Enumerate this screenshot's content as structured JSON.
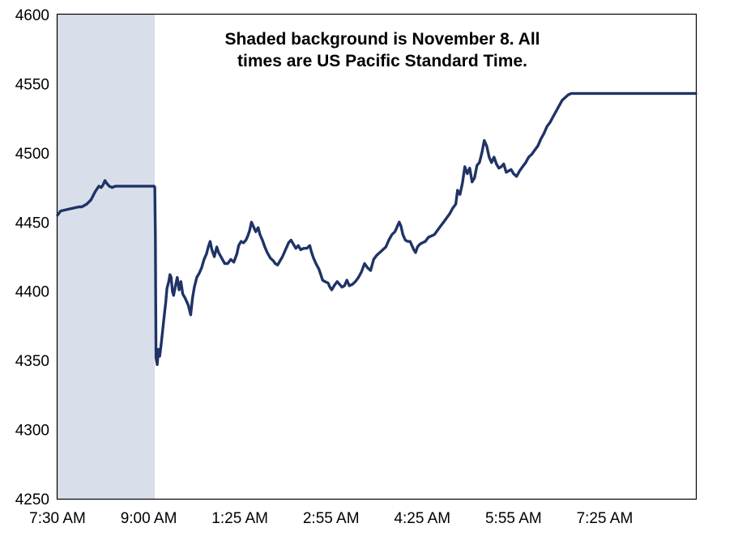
{
  "chart_data": {
    "type": "line",
    "title": "",
    "xlabel": "",
    "ylabel": "",
    "ylim": [
      4250,
      4600
    ],
    "y_ticks": [
      4250,
      4300,
      4350,
      4400,
      4450,
      4500,
      4550,
      4600
    ],
    "x_range": [
      0,
      1050
    ],
    "x_ticks": [
      {
        "label": "7:30 AM",
        "x": 0
      },
      {
        "label": "9:00 AM",
        "x": 150
      },
      {
        "label": "1:25 AM",
        "x": 300
      },
      {
        "label": "2:55 AM",
        "x": 450
      },
      {
        "label": "4:25 AM",
        "x": 600
      },
      {
        "label": "5:55 AM",
        "x": 750
      },
      {
        "label": "7:25 AM",
        "x": 900
      }
    ],
    "shaded_region": {
      "x_start": 0,
      "x_end": 160,
      "color": "#d9deeb"
    },
    "annotation": [
      "Shaded background is November 8. All",
      "times are US Pacific Standard Time."
    ],
    "grid": false,
    "series": [
      {
        "color": "#1f3366",
        "points": [
          [
            0,
            4455
          ],
          [
            5,
            4458
          ],
          [
            15,
            4459
          ],
          [
            25,
            4460
          ],
          [
            35,
            4461
          ],
          [
            40,
            4461
          ],
          [
            48,
            4463
          ],
          [
            55,
            4466
          ],
          [
            62,
            4472
          ],
          [
            68,
            4476
          ],
          [
            72,
            4475
          ],
          [
            75,
            4477
          ],
          [
            78,
            4480
          ],
          [
            81,
            4478
          ],
          [
            85,
            4476
          ],
          [
            90,
            4475
          ],
          [
            95,
            4476
          ],
          [
            100,
            4476
          ],
          [
            110,
            4476
          ],
          [
            130,
            4476
          ],
          [
            159,
            4476
          ],
          [
            160,
            4475
          ],
          [
            161,
            4440
          ],
          [
            162,
            4352
          ],
          [
            164,
            4347
          ],
          [
            166,
            4358
          ],
          [
            168,
            4353
          ],
          [
            170,
            4360
          ],
          [
            172,
            4368
          ],
          [
            175,
            4380
          ],
          [
            178,
            4392
          ],
          [
            180,
            4402
          ],
          [
            183,
            4407
          ],
          [
            185,
            4412
          ],
          [
            187,
            4410
          ],
          [
            189,
            4400
          ],
          [
            191,
            4397
          ],
          [
            194,
            4404
          ],
          [
            197,
            4410
          ],
          [
            200,
            4401
          ],
          [
            203,
            4407
          ],
          [
            206,
            4398
          ],
          [
            210,
            4395
          ],
          [
            215,
            4390
          ],
          [
            219,
            4383
          ],
          [
            222,
            4395
          ],
          [
            225,
            4403
          ],
          [
            229,
            4410
          ],
          [
            233,
            4413
          ],
          [
            237,
            4417
          ],
          [
            241,
            4423
          ],
          [
            245,
            4427
          ],
          [
            248,
            4432
          ],
          [
            251,
            4436
          ],
          [
            254,
            4430
          ],
          [
            258,
            4425
          ],
          [
            262,
            4432
          ],
          [
            265,
            4428
          ],
          [
            270,
            4424
          ],
          [
            275,
            4420
          ],
          [
            280,
            4420
          ],
          [
            285,
            4423
          ],
          [
            290,
            4421
          ],
          [
            295,
            4427
          ],
          [
            298,
            4433
          ],
          [
            302,
            4436
          ],
          [
            306,
            4435
          ],
          [
            310,
            4437
          ],
          [
            313,
            4440
          ],
          [
            316,
            4444
          ],
          [
            319,
            4450
          ],
          [
            322,
            4447
          ],
          [
            326,
            4443
          ],
          [
            330,
            4446
          ],
          [
            333,
            4441
          ],
          [
            337,
            4437
          ],
          [
            341,
            4432
          ],
          [
            345,
            4428
          ],
          [
            350,
            4424
          ],
          [
            355,
            4422
          ],
          [
            358,
            4420
          ],
          [
            362,
            4419
          ],
          [
            366,
            4422
          ],
          [
            370,
            4425
          ],
          [
            375,
            4430
          ],
          [
            380,
            4435
          ],
          [
            384,
            4437
          ],
          [
            388,
            4434
          ],
          [
            392,
            4431
          ],
          [
            396,
            4433
          ],
          [
            400,
            4430
          ],
          [
            405,
            4431
          ],
          [
            410,
            4431
          ],
          [
            415,
            4433
          ],
          [
            418,
            4428
          ],
          [
            421,
            4424
          ],
          [
            425,
            4420
          ],
          [
            430,
            4416
          ],
          [
            433,
            4412
          ],
          [
            436,
            4408
          ],
          [
            440,
            4407
          ],
          [
            445,
            4406
          ],
          [
            448,
            4403
          ],
          [
            451,
            4401
          ],
          [
            455,
            4404
          ],
          [
            460,
            4407
          ],
          [
            464,
            4405
          ],
          [
            468,
            4403
          ],
          [
            472,
            4404
          ],
          [
            476,
            4408
          ],
          [
            480,
            4404
          ],
          [
            485,
            4405
          ],
          [
            490,
            4407
          ],
          [
            495,
            4410
          ],
          [
            500,
            4414
          ],
          [
            505,
            4420
          ],
          [
            510,
            4417
          ],
          [
            515,
            4415
          ],
          [
            520,
            4423
          ],
          [
            525,
            4426
          ],
          [
            530,
            4428
          ],
          [
            535,
            4430
          ],
          [
            540,
            4432
          ],
          [
            545,
            4437
          ],
          [
            550,
            4441
          ],
          [
            555,
            4443
          ],
          [
            558,
            4446
          ],
          [
            562,
            4450
          ],
          [
            565,
            4447
          ],
          [
            568,
            4441
          ],
          [
            572,
            4437
          ],
          [
            576,
            4436
          ],
          [
            580,
            4436
          ],
          [
            583,
            4433
          ],
          [
            586,
            4430
          ],
          [
            589,
            4428
          ],
          [
            592,
            4432
          ],
          [
            596,
            4434
          ],
          [
            600,
            4435
          ],
          [
            605,
            4436
          ],
          [
            610,
            4439
          ],
          [
            615,
            4440
          ],
          [
            620,
            4441
          ],
          [
            625,
            4444
          ],
          [
            630,
            4447
          ],
          [
            635,
            4450
          ],
          [
            640,
            4453
          ],
          [
            645,
            4456
          ],
          [
            650,
            4460
          ],
          [
            655,
            4463
          ],
          [
            658,
            4473
          ],
          [
            662,
            4470
          ],
          [
            666,
            4478
          ],
          [
            670,
            4490
          ],
          [
            674,
            4485
          ],
          [
            678,
            4489
          ],
          [
            682,
            4479
          ],
          [
            686,
            4482
          ],
          [
            690,
            4491
          ],
          [
            694,
            4493
          ],
          [
            698,
            4500
          ],
          [
            702,
            4509
          ],
          [
            706,
            4505
          ],
          [
            710,
            4497
          ],
          [
            714,
            4493
          ],
          [
            718,
            4497
          ],
          [
            722,
            4492
          ],
          [
            726,
            4489
          ],
          [
            730,
            4490
          ],
          [
            734,
            4492
          ],
          [
            738,
            4486
          ],
          [
            742,
            4487
          ],
          [
            746,
            4488
          ],
          [
            750,
            4485
          ],
          [
            755,
            4483
          ],
          [
            760,
            4487
          ],
          [
            765,
            4490
          ],
          [
            770,
            4493
          ],
          [
            775,
            4497
          ],
          [
            780,
            4499
          ],
          [
            785,
            4502
          ],
          [
            790,
            4505
          ],
          [
            795,
            4510
          ],
          [
            800,
            4514
          ],
          [
            805,
            4519
          ],
          [
            810,
            4522
          ],
          [
            815,
            4526
          ],
          [
            820,
            4530
          ],
          [
            825,
            4534
          ],
          [
            830,
            4538
          ],
          [
            835,
            4540
          ],
          [
            840,
            4542
          ],
          [
            845,
            4543
          ],
          [
            855,
            4543
          ],
          [
            870,
            4543
          ],
          [
            1050,
            4543
          ]
        ]
      }
    ]
  }
}
